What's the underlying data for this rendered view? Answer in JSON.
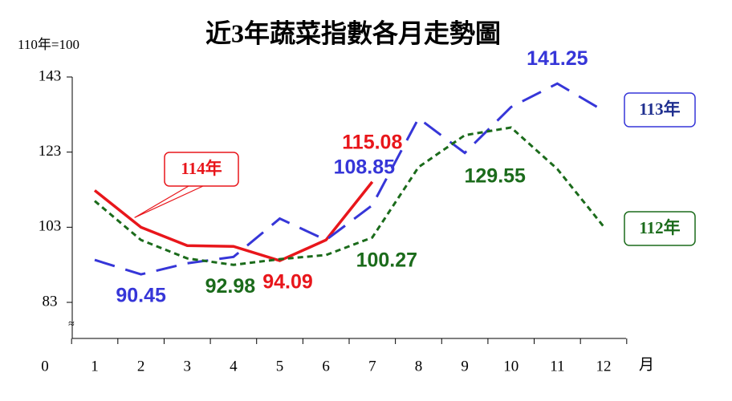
{
  "chart_data": {
    "type": "line",
    "title": "近3年蔬菜指數各月走勢圖",
    "y_unit": "110年=100",
    "x_unit": "月",
    "categories": [
      "1",
      "2",
      "3",
      "4",
      "5",
      "6",
      "7",
      "8",
      "9",
      "10",
      "11",
      "12"
    ],
    "ylim": [
      0,
      143
    ],
    "yticks": [
      0,
      83,
      103,
      123,
      143
    ],
    "axis_break": true,
    "series": [
      {
        "name": "114年",
        "color": "#e8161b",
        "dash": "solid",
        "values": [
          112.8,
          103,
          98.1,
          97.9,
          94.09,
          99.6,
          115.08,
          null,
          null,
          null,
          null,
          null
        ],
        "labeled": [
          4,
          6
        ]
      },
      {
        "name": "113年",
        "color": "#3636d8",
        "dash": "long",
        "values": [
          94.3,
          90.45,
          93.4,
          95.1,
          105.3,
          99.6,
          108.85,
          132,
          122.8,
          135,
          141.25,
          134
        ],
        "labeled": [
          1,
          6,
          10
        ]
      },
      {
        "name": "112年",
        "color": "#1b6b1b",
        "dash": "short",
        "values": [
          110,
          99.6,
          94.7,
          92.98,
          94.5,
          95.6,
          100.27,
          119,
          127.5,
          129.55,
          118.5,
          103.2
        ],
        "labeled": [
          3,
          6,
          9
        ]
      }
    ]
  }
}
